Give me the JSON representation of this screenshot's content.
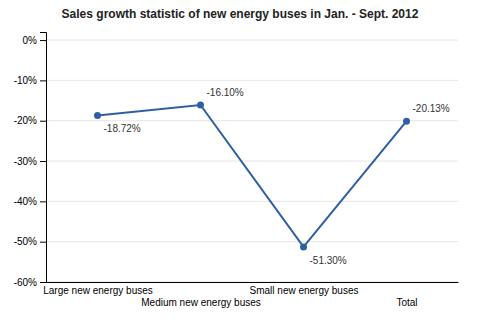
{
  "chart_data": {
    "type": "line",
    "title": "Sales growth statistic of new energy buses in Jan. - Sept. 2012",
    "categories": [
      "Large new energy buses",
      "Medium new energy buses",
      "Small new energy buses",
      "Total"
    ],
    "values": [
      -18.72,
      -16.1,
      -51.3,
      -20.13
    ],
    "value_labels": [
      "-18.72%",
      "-16.10%",
      "-51.30%",
      "-20.13%"
    ],
    "data_labels": true,
    "color": "#2E5FA3",
    "marker": "circle",
    "ylim": [
      -60,
      2
    ],
    "yticks": [
      {
        "value": 0,
        "label": "0%"
      },
      {
        "value": -10,
        "label": "-10%"
      },
      {
        "value": -20,
        "label": "-20%"
      },
      {
        "value": -30,
        "label": "-30%"
      },
      {
        "value": -40,
        "label": "-40%"
      },
      {
        "value": -50,
        "label": "-50%"
      },
      {
        "value": -60,
        "label": "-60%"
      }
    ],
    "grid": true
  }
}
